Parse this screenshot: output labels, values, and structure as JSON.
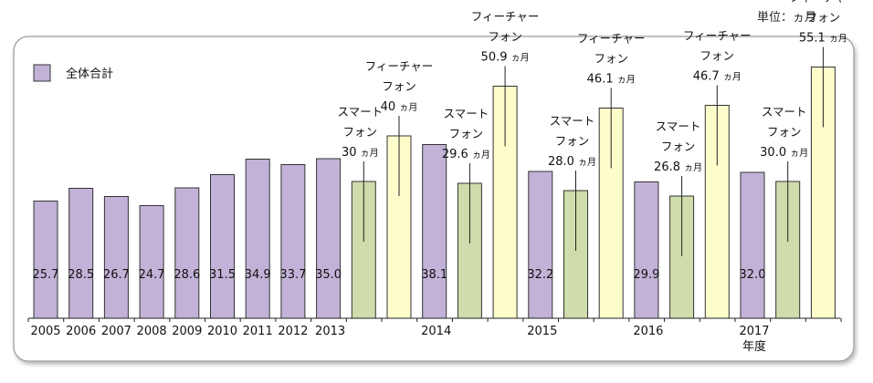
{
  "unit_note": "単位：ヵ月",
  "colors": {
    "total": "#c2b2d7",
    "smartphone": "#cfdcab",
    "feature": "#fdfdcc",
    "stroke": "#333333",
    "frame": "#9a9a9a"
  },
  "chart_data": {
    "type": "bar",
    "xlabel": "年度",
    "grid": false,
    "legend_position": "top-left",
    "legend": [
      {
        "name": "全体合計",
        "color_key": "total"
      }
    ],
    "unit_suffix": "ヵ月",
    "smartphone_label": [
      "スマート",
      "フォン"
    ],
    "feature_label": [
      "フィーチャー",
      "フォン"
    ],
    "year_groups": [
      {
        "label": "2005",
        "bars": [
          {
            "kind": "total",
            "value": 25.7,
            "label": "25.7"
          }
        ]
      },
      {
        "label": "2006",
        "bars": [
          {
            "kind": "total",
            "value": 28.5,
            "label": "28.5"
          }
        ]
      },
      {
        "label": "2007",
        "bars": [
          {
            "kind": "total",
            "value": 26.7,
            "label": "26.7"
          }
        ]
      },
      {
        "label": "2008",
        "bars": [
          {
            "kind": "total",
            "value": 24.7,
            "label": "24.7"
          }
        ]
      },
      {
        "label": "2009",
        "bars": [
          {
            "kind": "total",
            "value": 28.6,
            "label": "28.6"
          }
        ]
      },
      {
        "label": "2010",
        "bars": [
          {
            "kind": "total",
            "value": 31.5,
            "label": "31.5"
          }
        ]
      },
      {
        "label": "2011",
        "bars": [
          {
            "kind": "total",
            "value": 34.9,
            "label": "34.9"
          }
        ]
      },
      {
        "label": "2012",
        "bars": [
          {
            "kind": "total",
            "value": 33.7,
            "label": "33.7"
          }
        ]
      },
      {
        "label": "2013",
        "bars": [
          {
            "kind": "total",
            "value": 35.0,
            "label": "35.0"
          },
          {
            "kind": "smartphone",
            "value": 30,
            "label": "30"
          },
          {
            "kind": "feature",
            "value": 40,
            "label": "40"
          }
        ]
      },
      {
        "label": "2014",
        "bars": [
          {
            "kind": "total",
            "value": 38.1,
            "label": "38.1"
          },
          {
            "kind": "smartphone",
            "value": 29.6,
            "label": "29.6"
          },
          {
            "kind": "feature",
            "value": 50.9,
            "label": "50.9"
          }
        ]
      },
      {
        "label": "2015",
        "bars": [
          {
            "kind": "total",
            "value": 32.2,
            "label": "32.2"
          },
          {
            "kind": "smartphone",
            "value": 28.0,
            "label": "28.0"
          },
          {
            "kind": "feature",
            "value": 46.1,
            "label": "46.1"
          }
        ]
      },
      {
        "label": "2016",
        "bars": [
          {
            "kind": "total",
            "value": 29.9,
            "label": "29.9"
          },
          {
            "kind": "smartphone",
            "value": 26.8,
            "label": "26.8"
          },
          {
            "kind": "feature",
            "value": 46.7,
            "label": "46.7"
          }
        ]
      },
      {
        "label": "2017",
        "bars": [
          {
            "kind": "total",
            "value": 32.0,
            "label": "32.0"
          },
          {
            "kind": "smartphone",
            "value": 30.0,
            "label": "30.0"
          },
          {
            "kind": "feature",
            "value": 55.1,
            "label": "55.1"
          }
        ]
      }
    ]
  }
}
